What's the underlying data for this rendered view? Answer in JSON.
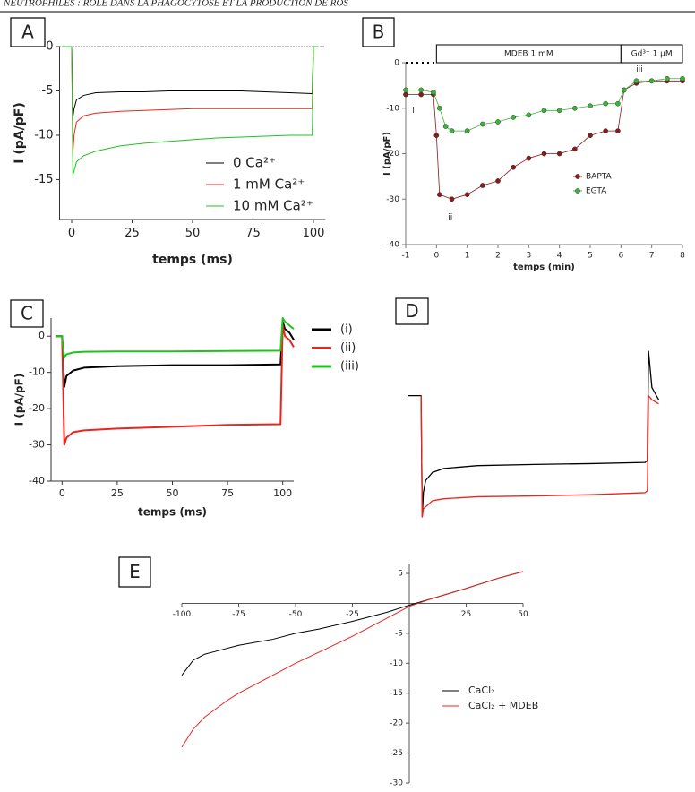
{
  "header": "NEUTROPHILES : RÔLE DANS LA PHAGOCYTOSE ET LA PRODUCTION DE ROS",
  "chart_data": [
    {
      "type": "line",
      "panel_label": "A",
      "xlabel": "temps (ms)",
      "ylabel": "I (pA/pF)",
      "xlim": [
        -5,
        105
      ],
      "ylim": [
        -19.5,
        0
      ],
      "xticks": [
        0,
        25,
        50,
        75,
        100
      ],
      "yticks": [
        0,
        -5,
        -10,
        -15
      ],
      "zero_line": true,
      "series": [
        {
          "name": "0 Ca²⁺",
          "color": "#000000",
          "x": [
            -4,
            0,
            0.5,
            1,
            2,
            5,
            10,
            20,
            30,
            40,
            50,
            60,
            70,
            80,
            90,
            99.5,
            100,
            102
          ],
          "values": [
            0,
            0,
            -8,
            -7,
            -6,
            -5.5,
            -5.2,
            -5.1,
            -5.1,
            -5,
            -5,
            -5,
            -5,
            -5.1,
            -5.2,
            -5.3,
            0,
            0
          ]
        },
        {
          "name": "1 mM Ca²⁺",
          "color": "#e8261f",
          "x": [
            -4,
            0,
            0.5,
            1,
            2,
            5,
            10,
            20,
            30,
            40,
            50,
            60,
            70,
            80,
            90,
            99.5,
            100,
            102
          ],
          "values": [
            0,
            0,
            -12,
            -10,
            -8.5,
            -7.8,
            -7.5,
            -7.3,
            -7.2,
            -7.1,
            -7,
            -7,
            -7,
            -7,
            -7,
            -7,
            0,
            0
          ]
        },
        {
          "name": "10 mM Ca²⁺",
          "color": "#1fc21f",
          "x": [
            -4,
            0,
            0.5,
            1,
            2,
            5,
            10,
            20,
            30,
            40,
            50,
            60,
            70,
            80,
            90,
            99.5,
            100,
            102
          ],
          "values": [
            0,
            0,
            -14.5,
            -14,
            -13,
            -12.3,
            -11.8,
            -11.2,
            -10.9,
            -10.7,
            -10.5,
            -10.3,
            -10.2,
            -10.1,
            -10,
            -10,
            0,
            0
          ]
        }
      ]
    },
    {
      "type": "line",
      "panel_label": "B",
      "xlabel": "temps (min)",
      "ylabel": "I (pA/pF)",
      "markers": true,
      "xlim": [
        -1,
        8
      ],
      "ylim": [
        -40,
        0
      ],
      "xticks": [
        -1,
        0,
        1,
        2,
        3,
        4,
        5,
        6,
        7,
        8
      ],
      "yticks": [
        0,
        -10,
        -20,
        -30,
        -40
      ],
      "annotations": [
        "MDEB 1 mM",
        "Gd³⁺ 1 µM",
        "i",
        "ii",
        "iii"
      ],
      "series": [
        {
          "name": "BAPTA",
          "color": "#8b1a1a",
          "x": [
            -1,
            -0.5,
            -0.1,
            0,
            0.1,
            0.5,
            1,
            1.5,
            2,
            2.5,
            3,
            3.5,
            4,
            4.5,
            5,
            5.5,
            5.9,
            6.1,
            6.5,
            7,
            7.5,
            8
          ],
          "values": [
            -7,
            -7,
            -7,
            -16,
            -29,
            -30,
            -29,
            -27,
            -26,
            -23,
            -21,
            -20,
            -20,
            -19,
            -16,
            -15,
            -15,
            -6,
            -4.5,
            -4,
            -4,
            -4
          ]
        },
        {
          "name": "EGTA",
          "color": "#3cb43c",
          "x": [
            -1,
            -0.5,
            -0.1,
            0.1,
            0.3,
            0.5,
            1,
            1.5,
            2,
            2.5,
            3,
            3.5,
            4,
            4.5,
            5,
            5.5,
            5.9,
            6.1,
            6.5,
            7,
            7.5,
            8
          ],
          "values": [
            -6,
            -6,
            -6.5,
            -10,
            -14,
            -15,
            -15,
            -13.5,
            -13,
            -12,
            -11.5,
            -10.5,
            -10.5,
            -10,
            -9.5,
            -9,
            -9,
            -6,
            -4,
            -4,
            -3.5,
            -3.5
          ]
        }
      ]
    },
    {
      "type": "line",
      "panel_label": "C",
      "xlabel": "temps (ms)",
      "ylabel": "I (pA/pF)",
      "xlim": [
        -5,
        105
      ],
      "ylim": [
        -40,
        5
      ],
      "xticks": [
        0,
        25,
        50,
        75,
        100
      ],
      "yticks": [
        0,
        -10,
        -20,
        -30,
        -40
      ],
      "series": [
        {
          "name": "(i)",
          "color": "#000000",
          "x": [
            -3,
            0,
            1,
            2,
            5,
            10,
            25,
            50,
            75,
            99,
            100,
            101,
            103,
            105
          ],
          "values": [
            0,
            0,
            -14,
            -11,
            -9.5,
            -8.7,
            -8.3,
            -8,
            -8,
            -7.8,
            4,
            2,
            1,
            -1
          ]
        },
        {
          "name": "(ii)",
          "color": "#e8261f",
          "x": [
            -3,
            0,
            1,
            2,
            5,
            10,
            25,
            50,
            75,
            99,
            100,
            101,
            103,
            105
          ],
          "values": [
            0,
            0,
            -30,
            -28,
            -26.5,
            -26,
            -25.5,
            -25,
            -24.5,
            -24.3,
            3,
            0,
            -1,
            -3
          ]
        },
        {
          "name": "(iii)",
          "color": "#1fc21f",
          "x": [
            -3,
            0,
            1,
            2,
            5,
            10,
            25,
            50,
            75,
            99,
            100,
            101,
            103,
            105
          ],
          "values": [
            0,
            0,
            -6,
            -5,
            -4.5,
            -4.3,
            -4.2,
            -4.2,
            -4.1,
            -4,
            5,
            4,
            3,
            2
          ]
        }
      ]
    },
    {
      "type": "line",
      "panel_label": "D",
      "xlim": [
        -6,
        106
      ],
      "ylim": [
        -30,
        11
      ],
      "series": [
        {
          "color": "#000000",
          "x": [
            -6,
            0,
            0.5,
            1,
            2,
            5,
            10,
            25,
            50,
            75,
            99,
            100,
            100.5,
            101,
            102,
            105
          ],
          "values": [
            0,
            0,
            -30,
            -24,
            -21,
            -19,
            -18,
            -17.3,
            -17,
            -16.8,
            -16.5,
            -16,
            11,
            8,
            2,
            -1
          ]
        },
        {
          "color": "#e8261f",
          "x": [
            0,
            0.5,
            1,
            5,
            10,
            25,
            50,
            75,
            99,
            100,
            100.5,
            102,
            105
          ],
          "values": [
            0,
            -30,
            -28,
            -26,
            -25.5,
            -25,
            -24.8,
            -24.5,
            -24,
            -23.5,
            0,
            -1,
            -2
          ]
        }
      ]
    },
    {
      "type": "line",
      "panel_label": "E",
      "axes": "cross",
      "xlim": [
        -100,
        50
      ],
      "ylim": [
        -30,
        6.5
      ],
      "xticks": [
        -100,
        -75,
        -50,
        -25,
        25,
        50
      ],
      "yticks": [
        5,
        -5,
        -10,
        -15,
        -20,
        -25,
        -30
      ],
      "series": [
        {
          "name": "CaCl₂",
          "color": "#000000",
          "x": [
            -100,
            -97,
            -95,
            -90,
            -85,
            -75,
            -60,
            -50,
            -40,
            -25,
            -10,
            0,
            10,
            25,
            40,
            50
          ],
          "values": [
            -12,
            -10.5,
            -9.5,
            -8.5,
            -8,
            -7,
            -6,
            -5,
            -4.3,
            -3,
            -1.5,
            -0.3,
            0.8,
            2.5,
            4.3,
            5.3
          ]
        },
        {
          "name": "CaCl₂ + MDEB",
          "color": "#e8261f",
          "x": [
            -100,
            -95,
            -90,
            -80,
            -75,
            -60,
            -50,
            -40,
            -25,
            -10,
            0,
            10,
            25,
            40,
            50
          ],
          "values": [
            -24,
            -21,
            -19,
            -16.2,
            -15,
            -12,
            -10,
            -8.2,
            -5.5,
            -2.5,
            -0.5,
            0.8,
            2.5,
            4.3,
            5.3
          ]
        }
      ]
    }
  ]
}
